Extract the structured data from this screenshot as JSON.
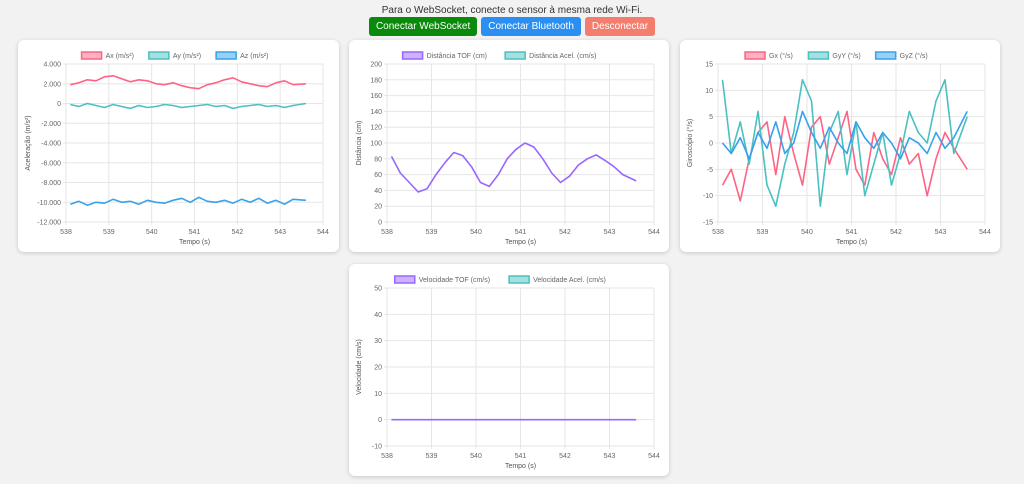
{
  "header": {
    "instruction": "Para o WebSocket, conecte o sensor à mesma rede Wi-Fi.",
    "buttons": {
      "websocket": "Conectar WebSocket",
      "bluetooth": "Conectar Bluetooth",
      "disconnect": "Desconectar"
    }
  },
  "colors": {
    "pink": "#ff6384",
    "teal": "#4bc0c0",
    "blue": "#36a2eb",
    "purple": "#9966ff",
    "btn_websocket": "#0a8a0a",
    "btn_bluetooth": "#2a8ff0",
    "btn_disconnect": "#f47d6e"
  },
  "chart_data": [
    {
      "id": "accel",
      "type": "line",
      "xlabel": "Tempo (s)",
      "ylabel": "Aceleração (m/s²)",
      "xlim": [
        538,
        544
      ],
      "xticks": [
        "538",
        "539",
        "540",
        "541",
        "542",
        "543",
        "544"
      ],
      "ylim": [
        -12000,
        4000
      ],
      "yticks": [
        "-12.000",
        "-10.000",
        "-8.000",
        "-6.000",
        "-4.000",
        "-2.000",
        "0",
        "2.000",
        "4.000"
      ],
      "grid": true,
      "legend": "top",
      "series": [
        {
          "name": "Ax (m/s²)",
          "color": "#ff6384",
          "x": [
            538.1,
            538.3,
            538.5,
            538.7,
            538.9,
            539.1,
            539.3,
            539.5,
            539.7,
            539.9,
            540.1,
            540.3,
            540.5,
            540.7,
            540.9,
            541.1,
            541.3,
            541.5,
            541.7,
            541.9,
            542.1,
            542.3,
            542.5,
            542.7,
            542.9,
            543.1,
            543.3,
            543.6
          ],
          "y": [
            1900,
            2100,
            2400,
            2300,
            2700,
            2800,
            2500,
            2200,
            2400,
            2300,
            2000,
            1900,
            2100,
            1800,
            1600,
            1500,
            1900,
            2100,
            2400,
            2600,
            2200,
            2000,
            1800,
            1700,
            2100,
            2300,
            1900,
            2000
          ]
        },
        {
          "name": "Ay (m/s²)",
          "color": "#4bc0c0",
          "x": [
            538.1,
            538.3,
            538.5,
            538.7,
            538.9,
            539.1,
            539.3,
            539.5,
            539.7,
            539.9,
            540.1,
            540.3,
            540.5,
            540.7,
            540.9,
            541.1,
            541.3,
            541.5,
            541.7,
            541.9,
            542.1,
            542.3,
            542.5,
            542.7,
            542.9,
            543.1,
            543.3,
            543.6
          ],
          "y": [
            -100,
            -300,
            0,
            -200,
            -400,
            -100,
            -300,
            -500,
            -200,
            -400,
            -300,
            -100,
            -200,
            -400,
            -300,
            -200,
            -100,
            -300,
            -200,
            -500,
            -300,
            -200,
            -100,
            -300,
            -200,
            -400,
            -200,
            0
          ]
        },
        {
          "name": "Az (m/s²)",
          "color": "#36a2eb",
          "x": [
            538.1,
            538.3,
            538.5,
            538.7,
            538.9,
            539.1,
            539.3,
            539.5,
            539.7,
            539.9,
            540.1,
            540.3,
            540.5,
            540.7,
            540.9,
            541.1,
            541.3,
            541.5,
            541.7,
            541.9,
            542.1,
            542.3,
            542.5,
            542.7,
            542.9,
            543.1,
            543.3,
            543.6
          ],
          "y": [
            -10200,
            -9900,
            -10300,
            -10000,
            -10100,
            -9700,
            -10000,
            -9900,
            -10200,
            -9800,
            -10000,
            -10100,
            -9800,
            -9600,
            -10000,
            -9500,
            -9900,
            -10000,
            -9800,
            -10100,
            -9700,
            -10000,
            -9600,
            -10100,
            -9800,
            -10200,
            -9700,
            -9800
          ]
        }
      ]
    },
    {
      "id": "dist",
      "type": "line",
      "xlabel": "Tempo (s)",
      "ylabel": "Distância (cm)",
      "xlim": [
        538,
        544
      ],
      "xticks": [
        "538",
        "539",
        "540",
        "541",
        "542",
        "543",
        "544"
      ],
      "ylim": [
        0,
        200
      ],
      "yticks": [
        "0",
        "20",
        "40",
        "60",
        "80",
        "100",
        "120",
        "140",
        "160",
        "180",
        "200"
      ],
      "grid": true,
      "legend": "top",
      "series": [
        {
          "name": "Distância TOF (cm)",
          "color": "#9966ff",
          "x": [
            538.1,
            538.3,
            538.5,
            538.7,
            538.9,
            539.1,
            539.3,
            539.5,
            539.7,
            539.9,
            540.1,
            540.3,
            540.5,
            540.7,
            540.9,
            541.1,
            541.3,
            541.5,
            541.7,
            541.9,
            542.1,
            542.3,
            542.5,
            542.7,
            542.9,
            543.1,
            543.3,
            543.6
          ],
          "y": [
            83,
            62,
            50,
            38,
            42,
            60,
            75,
            88,
            84,
            70,
            50,
            45,
            60,
            80,
            92,
            100,
            95,
            80,
            62,
            50,
            58,
            72,
            80,
            85,
            78,
            70,
            60,
            52
          ]
        },
        {
          "name": "Distância Acel. (cm/s)",
          "color": "#4bc0c0",
          "x": [],
          "y": []
        }
      ]
    },
    {
      "id": "gyro",
      "type": "line",
      "xlabel": "Tempo (s)",
      "ylabel": "Giroscópio (°/s)",
      "xlim": [
        538,
        544
      ],
      "xticks": [
        "538",
        "539",
        "540",
        "541",
        "542",
        "543",
        "544"
      ],
      "ylim": [
        -15,
        15
      ],
      "yticks": [
        "-15",
        "-10",
        "-5",
        "0",
        "5",
        "10",
        "15"
      ],
      "grid": true,
      "legend": "top",
      "series": [
        {
          "name": "Gx (°/s)",
          "color": "#ff6384",
          "x": [
            538.1,
            538.3,
            538.5,
            538.7,
            538.9,
            539.1,
            539.3,
            539.5,
            539.7,
            539.9,
            540.1,
            540.3,
            540.5,
            540.7,
            540.9,
            541.1,
            541.3,
            541.5,
            541.7,
            541.9,
            542.1,
            542.3,
            542.5,
            542.7,
            542.9,
            543.1,
            543.3,
            543.6
          ],
          "y": [
            -8,
            -5,
            -11,
            -3,
            2,
            4,
            -6,
            5,
            -2,
            -8,
            3,
            5,
            -4,
            1,
            6,
            -5,
            -8,
            2,
            -3,
            -6,
            1,
            -4,
            -2,
            -10,
            -3,
            2,
            -1,
            -5
          ]
        },
        {
          "name": "GyY (°/s)",
          "color": "#4bc0c0",
          "x": [
            538.1,
            538.3,
            538.5,
            538.7,
            538.9,
            539.1,
            539.3,
            539.5,
            539.7,
            539.9,
            540.1,
            540.3,
            540.5,
            540.7,
            540.9,
            541.1,
            541.3,
            541.5,
            541.7,
            541.9,
            542.1,
            542.3,
            542.5,
            542.7,
            542.9,
            543.1,
            543.3,
            543.6
          ],
          "y": [
            12,
            -2,
            4,
            -4,
            6,
            -8,
            -12,
            -4,
            2,
            12,
            8,
            -12,
            2,
            6,
            -6,
            4,
            -10,
            -4,
            2,
            -8,
            -2,
            6,
            2,
            0,
            8,
            12,
            -2,
            5
          ]
        },
        {
          "name": "GyZ (°/s)",
          "color": "#36a2eb",
          "x": [
            538.1,
            538.3,
            538.5,
            538.7,
            538.9,
            539.1,
            539.3,
            539.5,
            539.7,
            539.9,
            540.1,
            540.3,
            540.5,
            540.7,
            540.9,
            541.1,
            541.3,
            541.5,
            541.7,
            541.9,
            542.1,
            542.3,
            542.5,
            542.7,
            542.9,
            543.1,
            543.3,
            543.6
          ],
          "y": [
            0,
            -2,
            1,
            -3,
            2,
            -1,
            4,
            -2,
            0,
            6,
            2,
            -1,
            3,
            0,
            -2,
            4,
            1,
            -1,
            2,
            0,
            -3,
            1,
            0,
            -2,
            2,
            -1,
            1,
            6
          ]
        }
      ]
    },
    {
      "id": "vel",
      "type": "line",
      "xlabel": "Tempo (s)",
      "ylabel": "Velocidade (cm/s)",
      "xlim": [
        538,
        544
      ],
      "xticks": [
        "538",
        "539",
        "540",
        "541",
        "542",
        "543",
        "544"
      ],
      "ylim": [
        -10,
        50
      ],
      "yticks": [
        "-10",
        "0",
        "10",
        "20",
        "30",
        "40",
        "50"
      ],
      "grid": true,
      "legend": "top",
      "series": [
        {
          "name": "Velocidade TOF (cm/s)",
          "color": "#9966ff",
          "x": [
            538.1,
            538.5,
            539.0,
            539.5,
            540.0,
            540.5,
            541.0,
            541.5,
            542.0,
            542.5,
            543.0,
            543.6
          ],
          "y": [
            0,
            0,
            0,
            0,
            0,
            0,
            0,
            0,
            0,
            0,
            0,
            0
          ]
        },
        {
          "name": "Velocidade Acel. (cm/s)",
          "color": "#4bc0c0",
          "x": [],
          "y": []
        }
      ]
    }
  ]
}
